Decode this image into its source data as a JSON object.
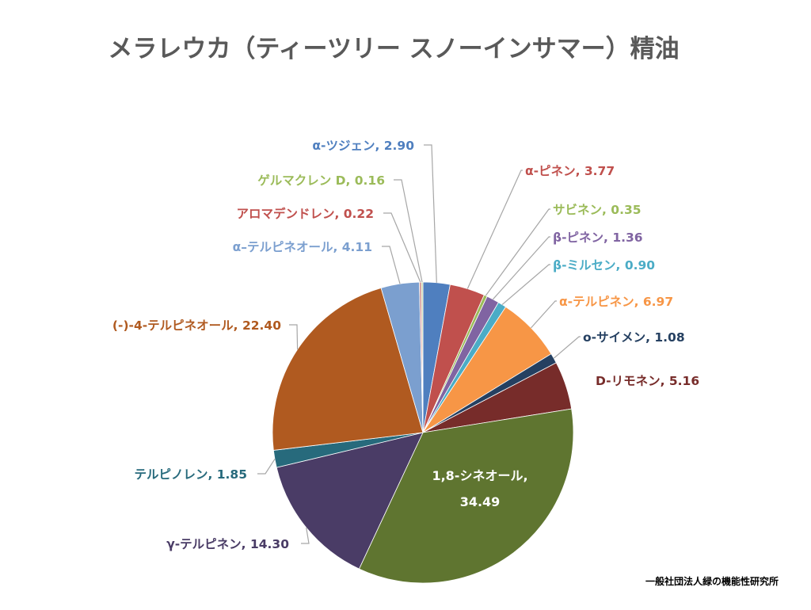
{
  "chart_data": {
    "type": "pie",
    "title": "メラレウカ（ティーツリー スノーインサマー）精油",
    "source_note": "一般社団法人緑の機能性研究所",
    "slices": [
      {
        "label": "α-ツジェン",
        "value": 2.9,
        "value_text": "2.90",
        "color": "#4f7fbf"
      },
      {
        "label": "α-ピネン",
        "value": 3.77,
        "value_text": "3.77",
        "color": "#c0504d"
      },
      {
        "label": "サビネン",
        "value": 0.35,
        "value_text": "0.35",
        "color": "#9bbb59"
      },
      {
        "label": "β-ピネン",
        "value": 1.36,
        "value_text": "1.36",
        "color": "#8064a2"
      },
      {
        "label": "β-ミルセン",
        "value": 0.9,
        "value_text": "0.90",
        "color": "#4bacc6"
      },
      {
        "label": "α-テルピネン",
        "value": 6.97,
        "value_text": "6.97",
        "color": "#f79646"
      },
      {
        "label": "o-サイメン",
        "value": 1.08,
        "value_text": "1.08",
        "color": "#254061"
      },
      {
        "label": "D-リモネン",
        "value": 5.16,
        "value_text": "5.16",
        "color": "#772c2a"
      },
      {
        "label": "1,8-シネオール",
        "value": 34.49,
        "value_text": "34.49",
        "color": "#5f7530"
      },
      {
        "label": "γ-テルピネン",
        "value": 14.3,
        "value_text": "14.30",
        "color": "#4a3c66"
      },
      {
        "label": "テルピノレン",
        "value": 1.85,
        "value_text": "1.85",
        "color": "#276a7c"
      },
      {
        "label": "(-)-4-テルピネオール",
        "value": 22.4,
        "value_text": "22.40",
        "color": "#b05a20"
      },
      {
        "label": "α–テルピネオール",
        "value": 4.11,
        "value_text": "4.11",
        "color": "#7b9fcf"
      },
      {
        "label": "アロマデンドレン",
        "value": 0.22,
        "value_text": "0.22",
        "color": "#d08c8a"
      },
      {
        "label": "ゲルマクレン D",
        "value": 0.16,
        "value_text": "0.16",
        "color": "#bcd095"
      }
    ]
  }
}
